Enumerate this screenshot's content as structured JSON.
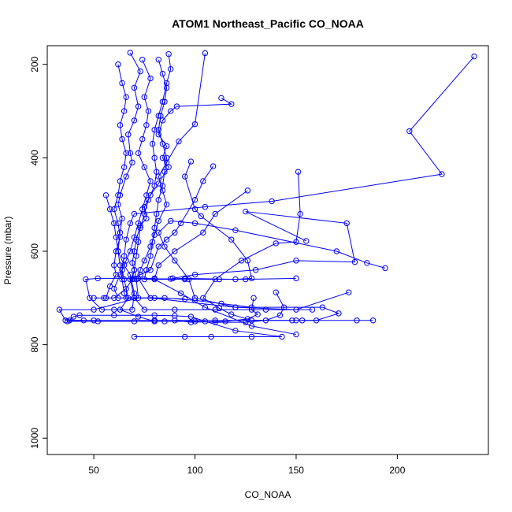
{
  "chart_data": {
    "type": "line",
    "title": "ATOM1 Northeast_Pacific CO_NOAA",
    "xlabel": "CO_NOAA",
    "ylabel": "Pressure (mbar)",
    "xlim": [
      27,
      245
    ],
    "ylim": [
      1035,
      160
    ],
    "y_reversed": true,
    "grid": false,
    "x_ticks": [
      50,
      100,
      150,
      200
    ],
    "y_ticks": [
      200,
      400,
      600,
      800,
      1000
    ],
    "series_color": "#0000ff",
    "marker": "open-circle",
    "series": [
      {
        "points": [
          [
            238,
            183
          ],
          [
            206,
            343
          ],
          [
            222,
            435
          ],
          [
            138,
            493
          ],
          [
            105,
            505
          ],
          [
            70,
            520
          ],
          [
            68,
            540
          ],
          [
            66,
            575
          ],
          [
            65,
            610
          ],
          [
            64,
            640
          ],
          [
            65,
            660
          ],
          [
            67,
            700
          ],
          [
            63,
            725
          ],
          [
            72,
            740
          ],
          [
            80,
            750
          ]
        ]
      },
      {
        "points": [
          [
            113,
            272
          ],
          [
            118,
            285
          ],
          [
            91,
            290
          ],
          [
            88,
            300
          ],
          [
            84,
            320
          ],
          [
            82,
            350
          ],
          [
            86,
            375
          ],
          [
            84,
            400
          ],
          [
            87,
            420
          ],
          [
            82,
            455
          ],
          [
            78,
            480
          ],
          [
            75,
            505
          ],
          [
            76,
            530
          ],
          [
            73,
            545
          ],
          [
            71,
            575
          ],
          [
            70,
            600
          ],
          [
            69,
            625
          ],
          [
            70,
            640
          ],
          [
            71,
            660
          ],
          [
            72,
            700
          ],
          [
            50,
            725
          ],
          [
            33,
            725
          ],
          [
            36,
            748
          ],
          [
            45,
            748
          ]
        ]
      },
      {
        "points": [
          [
            105,
            176
          ],
          [
            100,
            328
          ],
          [
            92,
            365
          ],
          [
            86,
            410
          ],
          [
            82,
            440
          ],
          [
            84,
            470
          ],
          [
            86,
            500
          ],
          [
            82,
            535
          ],
          [
            80,
            565
          ],
          [
            78,
            590
          ],
          [
            75,
            620
          ],
          [
            73,
            640
          ],
          [
            72,
            658
          ],
          [
            78,
            700
          ],
          [
            120,
            720
          ],
          [
            163,
            720
          ],
          [
            171,
            733
          ],
          [
            160,
            748
          ],
          [
            153,
            748
          ]
        ]
      },
      {
        "points": [
          [
            68,
            175
          ],
          [
            73,
            215
          ],
          [
            70,
            250
          ],
          [
            72,
            290
          ],
          [
            70,
            320
          ],
          [
            67,
            350
          ],
          [
            68,
            390
          ],
          [
            69,
            410
          ],
          [
            66,
            440
          ],
          [
            63,
            480
          ],
          [
            62,
            500
          ],
          [
            64,
            530
          ],
          [
            63,
            560
          ],
          [
            62,
            600
          ],
          [
            65,
            630
          ],
          [
            68,
            650
          ],
          [
            70,
            690
          ],
          [
            69,
            725
          ],
          [
            60,
            725
          ],
          [
            54,
            725
          ],
          [
            48,
            700
          ],
          [
            46,
            660
          ],
          [
            52,
            658
          ],
          [
            80,
            658
          ]
        ]
      },
      {
        "points": [
          [
            98,
            408
          ],
          [
            95,
            440
          ],
          [
            100,
            510
          ],
          [
            103,
            525
          ],
          [
            118,
            575
          ],
          [
            126,
            620
          ],
          [
            128,
            658
          ],
          [
            120,
            660
          ],
          [
            95,
            658
          ],
          [
            88,
            659
          ],
          [
            70,
            659
          ]
        ]
      },
      {
        "points": [
          [
            109,
            418
          ],
          [
            104,
            450
          ],
          [
            100,
            490
          ],
          [
            93,
            540
          ],
          [
            90,
            560
          ],
          [
            86,
            575
          ],
          [
            82,
            590
          ],
          [
            78,
            640
          ],
          [
            73,
            650
          ],
          [
            68,
            660
          ],
          [
            70,
            700
          ],
          [
            75,
            725
          ],
          [
            90,
            725
          ],
          [
            110,
            725
          ],
          [
            135,
            725
          ],
          [
            158,
            725
          ]
        ]
      },
      {
        "points": [
          [
            151,
            430
          ],
          [
            152,
            520
          ],
          [
            150,
            580
          ],
          [
            140,
            583
          ],
          [
            123,
            620
          ],
          [
            110,
            660
          ],
          [
            104,
            700
          ],
          [
            112,
            722
          ],
          [
            118,
            735
          ],
          [
            128,
            748
          ],
          [
            148,
            748
          ]
        ]
      },
      {
        "points": [
          [
            155,
            578
          ],
          [
            125,
            515
          ],
          [
            175,
            540
          ],
          [
            179,
            623
          ],
          [
            150,
            620
          ],
          [
            130,
            640
          ],
          [
            100,
            650
          ],
          [
            89,
            658
          ]
        ]
      },
      {
        "points": [
          [
            126,
            470
          ],
          [
            110,
            520
          ],
          [
            104,
            560
          ],
          [
            90,
            600
          ],
          [
            82,
            630
          ],
          [
            80,
            660
          ],
          [
            93,
            690
          ],
          [
            105,
            720
          ],
          [
            128,
            760
          ],
          [
            150,
            778
          ]
        ]
      },
      {
        "points": [
          [
            194,
            636
          ],
          [
            185,
            625
          ],
          [
            170,
            600
          ],
          [
            120,
            555
          ],
          [
            100,
            540
          ],
          [
            88,
            535
          ],
          [
            82,
            560
          ],
          [
            85,
            590
          ],
          [
            90,
            620
          ],
          [
            97,
            660
          ],
          [
            100,
            700
          ],
          [
            120,
            720
          ],
          [
            150,
            725
          ],
          [
            176,
            688
          ]
        ]
      },
      {
        "points": [
          [
            70,
            783
          ],
          [
            95,
            783
          ],
          [
            108,
            783
          ],
          [
            128,
            783
          ],
          [
            143,
            783
          ],
          [
            120,
            770
          ],
          [
            105,
            750
          ],
          [
            98,
            740
          ],
          [
            90,
            738
          ],
          [
            80,
            737
          ],
          [
            60,
            737
          ],
          [
            43,
            737
          ],
          [
            40,
            740
          ],
          [
            38,
            748
          ],
          [
            50,
            748
          ],
          [
            80,
            748
          ],
          [
            110,
            748
          ],
          [
            150,
            748
          ],
          [
            180,
            748
          ],
          [
            188,
            748
          ]
        ]
      },
      {
        "points": [
          [
            74,
            190
          ],
          [
            78,
            230
          ],
          [
            75,
            270
          ],
          [
            77,
            300
          ],
          [
            76,
            330
          ],
          [
            74,
            360
          ],
          [
            72,
            390
          ],
          [
            75,
            420
          ],
          [
            78,
            450
          ],
          [
            76,
            480
          ],
          [
            74,
            510
          ],
          [
            72,
            540
          ],
          [
            70,
            570
          ],
          [
            68,
            600
          ],
          [
            66,
            620
          ],
          [
            63,
            650
          ],
          [
            60,
            680
          ],
          [
            62,
            700
          ],
          [
            70,
            700
          ],
          [
            85,
            700
          ],
          [
            100,
            705
          ],
          [
            113,
            712
          ],
          [
            128,
            720
          ]
        ]
      },
      {
        "points": [
          [
            87,
            178
          ],
          [
            88,
            210
          ],
          [
            86,
            240
          ],
          [
            84,
            280
          ],
          [
            82,
            310
          ],
          [
            80,
            340
          ],
          [
            79,
            370
          ],
          [
            80,
            400
          ],
          [
            81,
            430
          ],
          [
            80,
            460
          ],
          [
            77,
            490
          ],
          [
            75,
            520
          ],
          [
            73,
            550
          ],
          [
            72,
            580
          ],
          [
            71,
            610
          ],
          [
            70,
            640
          ],
          [
            69,
            660
          ],
          [
            66,
            680
          ],
          [
            60,
            700
          ],
          [
            55,
            700
          ],
          [
            50,
            700
          ]
        ]
      },
      {
        "points": [
          [
            62,
            200
          ],
          [
            64,
            240
          ],
          [
            66,
            270
          ],
          [
            65,
            300
          ],
          [
            63,
            330
          ],
          [
            64,
            360
          ],
          [
            66,
            390
          ],
          [
            65,
            420
          ],
          [
            63,
            450
          ],
          [
            62,
            480
          ],
          [
            60,
            510
          ],
          [
            62,
            540
          ],
          [
            63,
            570
          ],
          [
            61,
            600
          ],
          [
            60,
            630
          ],
          [
            61,
            650
          ],
          [
            58,
            675
          ],
          [
            56,
            700
          ]
        ]
      },
      {
        "points": [
          [
            82,
            190
          ],
          [
            84,
            220
          ],
          [
            86,
            250
          ],
          [
            85,
            280
          ],
          [
            83,
            310
          ],
          [
            82,
            340
          ],
          [
            84,
            370
          ],
          [
            86,
            400
          ],
          [
            85,
            430
          ],
          [
            84,
            460
          ],
          [
            82,
            490
          ],
          [
            81,
            520
          ],
          [
            80,
            550
          ],
          [
            79,
            580
          ],
          [
            78,
            610
          ],
          [
            76,
            640
          ],
          [
            75,
            660
          ],
          [
            95,
            660
          ],
          [
            112,
            660
          ],
          [
            125,
            660
          ],
          [
            150,
            658
          ]
        ]
      },
      {
        "points": [
          [
            56,
            480
          ],
          [
            58,
            510
          ],
          [
            60,
            540
          ],
          [
            61,
            570
          ],
          [
            62,
            600
          ],
          [
            63,
            630
          ],
          [
            64,
            660
          ],
          [
            65,
            690
          ],
          [
            66,
            700
          ],
          [
            80,
            700
          ],
          [
            95,
            702
          ]
        ]
      },
      {
        "points": [
          [
            140,
            688
          ],
          [
            144,
            720
          ],
          [
            142,
            737
          ],
          [
            135,
            748
          ],
          [
            125,
            752
          ],
          [
            110,
            752
          ],
          [
            100,
            750
          ],
          [
            85,
            750
          ],
          [
            70,
            750
          ],
          [
            52,
            750
          ],
          [
            37,
            750
          ]
        ]
      },
      {
        "points": [
          [
            129,
            700
          ],
          [
            128,
            725
          ],
          [
            131,
            735
          ],
          [
            126,
            745
          ],
          [
            115,
            750
          ],
          [
            98,
            752
          ],
          [
            90,
            748
          ]
        ]
      }
    ]
  }
}
